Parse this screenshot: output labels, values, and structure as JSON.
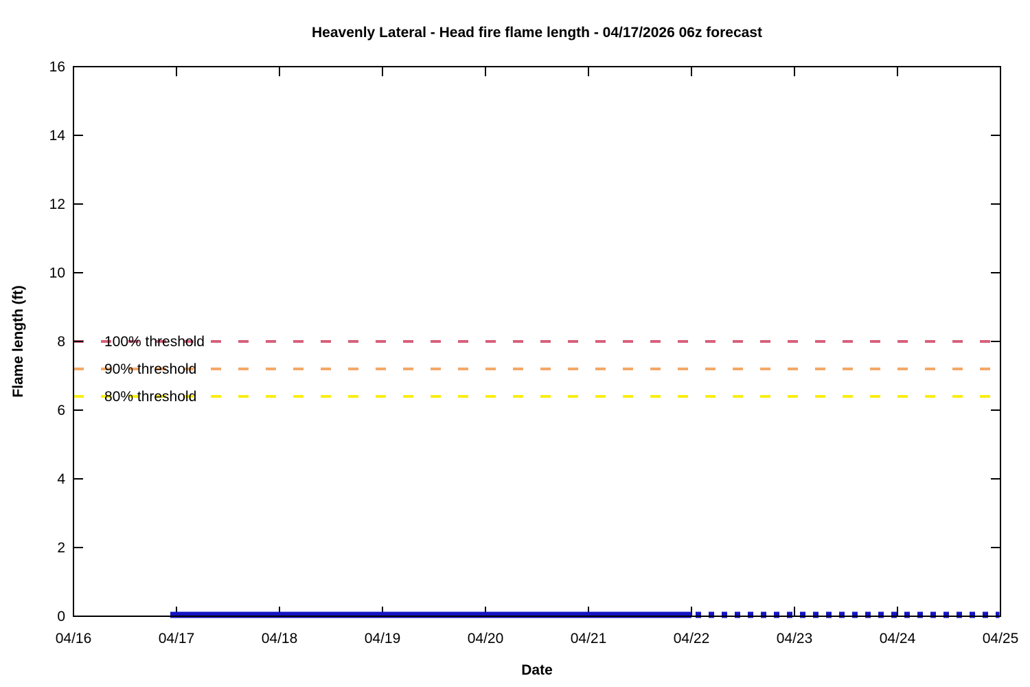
{
  "chart_data": {
    "type": "line",
    "title": "Heavenly Lateral - Head fire flame length - 04/17/2026 06z forecast",
    "xlabel": "Date",
    "ylabel": "Flame length (ft)",
    "grid": false,
    "legend_position": "inline-left",
    "axis_color": "#000000",
    "xlim": [
      16,
      25
    ],
    "ylim": [
      0,
      16
    ],
    "x_tick_days": [
      16,
      17,
      18,
      19,
      20,
      21,
      22,
      23,
      24,
      25
    ],
    "x_tick_labels": [
      "04/16",
      "04/17",
      "04/18",
      "04/19",
      "04/20",
      "04/21",
      "04/22",
      "04/23",
      "04/24",
      "04/25"
    ],
    "y_ticks": [
      0,
      2,
      4,
      6,
      8,
      10,
      12,
      14,
      16
    ],
    "thresholds": [
      {
        "label": "100% threshold",
        "value": 8,
        "color": "#d6617b"
      },
      {
        "label": "90% threshold",
        "value": 7.2,
        "color": "#f4a867"
      },
      {
        "label": "80% threshold",
        "value": 6.4,
        "color": "#f9ee11"
      }
    ],
    "series": [
      {
        "name": "flame-length-solid",
        "style": "solid",
        "color": "#1515c4",
        "x": [
          16.94,
          22.0
        ],
        "values": [
          0,
          0
        ]
      },
      {
        "name": "flame-length-dotted",
        "style": "dotted",
        "color": "#1515c4",
        "x": [
          22.04,
          24.99
        ],
        "values": [
          0,
          0
        ]
      }
    ]
  }
}
